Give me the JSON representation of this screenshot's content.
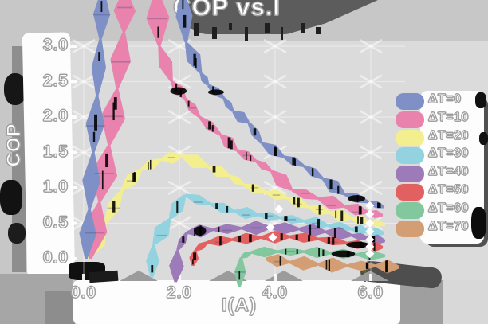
{
  "title": "COP vs.I",
  "chart_data": {
    "type": "line",
    "title": "COP vs.I",
    "xlabel": "I(A)",
    "ylabel": "COP",
    "xlim": [
      0,
      6.5
    ],
    "ylim": [
      0,
      3.0
    ],
    "grid": true,
    "legend_position": "right",
    "x_ticks": {
      "labels": [
        "0.0",
        "2.0",
        "4.0",
        "6.0"
      ],
      "values": [
        0,
        2,
        4,
        6
      ]
    },
    "y_ticks": {
      "labels": [
        "3.0",
        "2.5",
        "2.0",
        "1.5",
        "1.0",
        "0.5",
        "0.0"
      ],
      "values": [
        3.0,
        2.5,
        2.0,
        1.5,
        1.0,
        0.5,
        0.0
      ]
    },
    "series": [
      {
        "name": "ΔT=0",
        "color": "#7e90c6",
        "points": [
          [
            0.05,
            0
          ],
          [
            0.12,
            0.7
          ],
          [
            0.2,
            1.5
          ],
          [
            0.28,
            2.3
          ],
          [
            0.35,
            3.1
          ],
          [
            0.4,
            3.8
          ],
          [
            2.06,
            3.8
          ],
          [
            2.14,
            3.05
          ],
          [
            2.45,
            2.62
          ],
          [
            2.6,
            2.45
          ],
          [
            2.93,
            2.27
          ],
          [
            3.12,
            2.08
          ],
          [
            3.45,
            1.92
          ],
          [
            3.72,
            1.63
          ],
          [
            4.18,
            1.44
          ],
          [
            4.6,
            1.31
          ],
          [
            5.0,
            1.13
          ],
          [
            5.45,
            0.91
          ],
          [
            5.95,
            0.8
          ],
          [
            6.28,
            0.73
          ]
        ]
      },
      {
        "name": "ΔT=10",
        "color": "#e983ad",
        "points": [
          [
            0.14,
            0
          ],
          [
            0.33,
            0.8
          ],
          [
            0.53,
            1.6
          ],
          [
            0.7,
            2.4
          ],
          [
            0.84,
            3.2
          ],
          [
            0.87,
            3.8
          ],
          [
            1.52,
            3.8
          ],
          [
            1.58,
            3.0
          ],
          [
            1.84,
            2.5
          ],
          [
            2.12,
            2.26
          ],
          [
            2.42,
            2.0
          ],
          [
            2.86,
            1.75
          ],
          [
            3.2,
            1.53
          ],
          [
            3.6,
            1.38
          ],
          [
            3.92,
            1.24
          ],
          [
            4.35,
            0.97
          ],
          [
            4.9,
            0.85
          ],
          [
            5.45,
            0.74
          ],
          [
            5.95,
            0.65
          ],
          [
            6.25,
            0.61
          ]
        ]
      },
      {
        "name": "ΔT=20",
        "color": "#f3ef8f",
        "points": [
          [
            0.1,
            0
          ],
          [
            0.45,
            0.5
          ],
          [
            0.8,
            0.97
          ],
          [
            1.2,
            1.26
          ],
          [
            1.62,
            1.4
          ],
          [
            2.05,
            1.45
          ],
          [
            2.6,
            1.3
          ],
          [
            3.05,
            1.17
          ],
          [
            3.35,
            1.04
          ],
          [
            3.8,
            0.94
          ],
          [
            4.25,
            0.86
          ],
          [
            4.7,
            0.73
          ],
          [
            5.15,
            0.65
          ],
          [
            5.6,
            0.57
          ],
          [
            5.95,
            0.52
          ],
          [
            6.3,
            0.48
          ]
        ]
      },
      {
        "name": "ΔT=30",
        "color": "#93d3e0",
        "points": [
          [
            1.42,
            -0.27
          ],
          [
            1.46,
            0.2
          ],
          [
            1.8,
            0.56
          ],
          [
            2.12,
            0.9
          ],
          [
            2.65,
            0.77
          ],
          [
            3.15,
            0.67
          ],
          [
            3.65,
            0.62
          ],
          [
            4.1,
            0.58
          ],
          [
            4.6,
            0.53
          ],
          [
            5.1,
            0.47
          ],
          [
            5.6,
            0.42
          ],
          [
            5.95,
            0.39
          ],
          [
            6.28,
            0.36
          ]
        ]
      },
      {
        "name": "ΔT=40",
        "color": "#9d7ab8",
        "points": [
          [
            1.92,
            -0.33
          ],
          [
            1.96,
            0.12
          ],
          [
            2.16,
            0.37
          ],
          [
            2.7,
            0.41
          ],
          [
            3.3,
            0.43
          ],
          [
            3.9,
            0.44
          ],
          [
            4.5,
            0.42
          ],
          [
            5.05,
            0.38
          ],
          [
            5.6,
            0.33
          ],
          [
            5.95,
            0.29
          ],
          [
            6.3,
            0.25
          ]
        ]
      },
      {
        "name": "ΔT=50",
        "color": "#e26060",
        "points": [
          [
            2.28,
            -0.1
          ],
          [
            2.33,
            0.12
          ],
          [
            2.58,
            0.23
          ],
          [
            3.1,
            0.27
          ],
          [
            3.7,
            0.3
          ],
          [
            4.3,
            0.31
          ],
          [
            4.9,
            0.28
          ],
          [
            5.5,
            0.22
          ],
          [
            5.95,
            0.18
          ],
          [
            6.25,
            0.16
          ]
        ]
      },
      {
        "name": "ΔT=60",
        "color": "#83c79f",
        "points": [
          [
            3.25,
            -0.4
          ],
          [
            3.29,
            0.02
          ],
          [
            3.5,
            0.09
          ],
          [
            4.05,
            0.1
          ],
          [
            4.6,
            0.1
          ],
          [
            5.15,
            0.08
          ],
          [
            5.7,
            0.06
          ],
          [
            6.3,
            0.04
          ]
        ]
      },
      {
        "name": "ΔT=70",
        "color": "#d49e74",
        "points": [
          [
            3.8,
            0.0
          ],
          [
            4.3,
            -0.05
          ],
          [
            4.9,
            -0.08
          ],
          [
            5.5,
            -0.1
          ],
          [
            6.1,
            -0.1
          ],
          [
            6.6,
            -0.12
          ]
        ]
      }
    ],
    "white_diamond_markers": [
      [
        3.9,
        0.44
      ],
      [
        3.95,
        0.3
      ],
      [
        4.08,
        0.7
      ],
      [
        5.98,
        0.75
      ],
      [
        5.98,
        0.63
      ],
      [
        5.98,
        0.5
      ],
      [
        5.98,
        0.385
      ],
      [
        5.98,
        0.27
      ],
      [
        5.98,
        0.17
      ],
      [
        5.98,
        0.07
      ]
    ]
  }
}
